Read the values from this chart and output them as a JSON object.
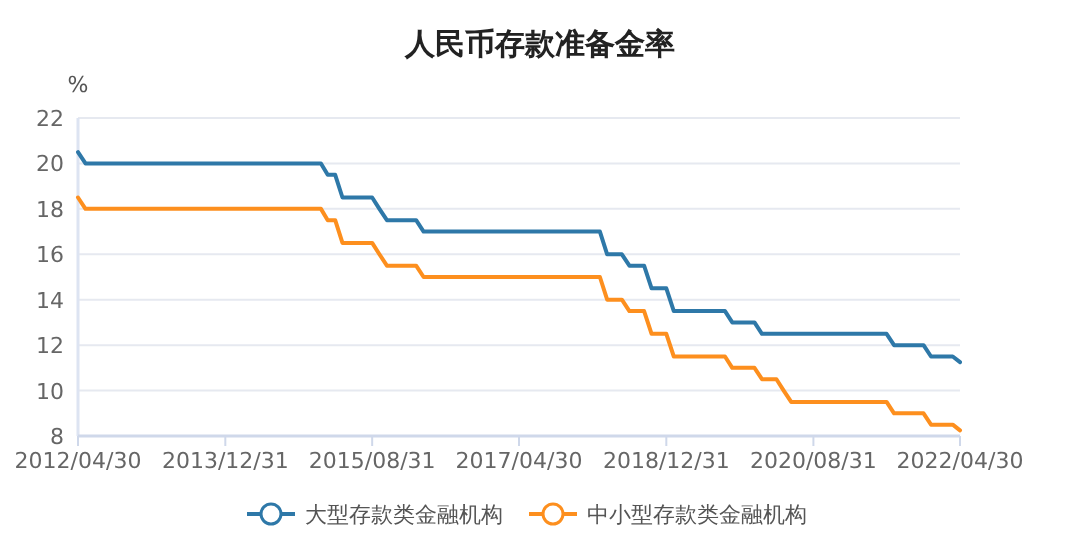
{
  "chart_data": {
    "type": "line",
    "title": "人民币存款准备金率",
    "ylabel": "%",
    "xlim": [
      "2012-04-30",
      "2022-04-30"
    ],
    "xticks": [
      {
        "value": "2012-04-30",
        "label": "2012/04/30"
      },
      {
        "value": "2013-12-31",
        "label": "2013/12/31"
      },
      {
        "value": "2015-08-31",
        "label": "2015/08/31"
      },
      {
        "value": "2017-04-30",
        "label": "2017/04/30"
      },
      {
        "value": "2018-12-31",
        "label": "2018/12/31"
      },
      {
        "value": "2020-08-31",
        "label": "2020/08/31"
      },
      {
        "value": "2022-04-30",
        "label": "2022/04/30"
      }
    ],
    "ylim": [
      8,
      22
    ],
    "yticks": [
      8,
      10,
      12,
      14,
      16,
      18,
      20,
      22
    ],
    "grid": "y",
    "legend": "bottom",
    "marker": "none",
    "line_style": "solid",
    "series": [
      {
        "name": "大型存款类金融机构",
        "color": "#2e78a8",
        "x": [
          "2012-04-30",
          "2012-05-31",
          "2015-01-31",
          "2015-02-28",
          "2015-03-31",
          "2015-04-30",
          "2015-08-31",
          "2015-09-30",
          "2015-10-31",
          "2016-02-29",
          "2016-03-31",
          "2018-03-31",
          "2018-04-30",
          "2018-06-30",
          "2018-07-31",
          "2018-09-30",
          "2018-10-31",
          "2018-12-31",
          "2019-01-31",
          "2019-08-31",
          "2019-09-30",
          "2019-12-31",
          "2020-01-31",
          "2021-06-30",
          "2021-07-31",
          "2021-11-30",
          "2021-12-31",
          "2022-03-31",
          "2022-04-30"
        ],
        "values": [
          20.5,
          20,
          20,
          19.5,
          19.5,
          18.5,
          18.5,
          18,
          17.5,
          17.5,
          17,
          17,
          16,
          16,
          15.5,
          15.5,
          14.5,
          14.5,
          13.5,
          13.5,
          13,
          13,
          12.5,
          12.5,
          12,
          12,
          11.5,
          11.5,
          11.25
        ]
      },
      {
        "name": "中小型存款类金融机构",
        "color": "#fd8f1e",
        "x": [
          "2012-04-30",
          "2012-05-31",
          "2015-01-31",
          "2015-02-28",
          "2015-03-31",
          "2015-04-30",
          "2015-08-31",
          "2015-09-30",
          "2015-10-31",
          "2016-02-29",
          "2016-03-31",
          "2018-03-31",
          "2018-04-30",
          "2018-06-30",
          "2018-07-31",
          "2018-09-30",
          "2018-10-31",
          "2018-12-31",
          "2019-01-31",
          "2019-08-31",
          "2019-09-30",
          "2019-12-31",
          "2020-01-31",
          "2020-03-31",
          "2020-04-30",
          "2020-05-31",
          "2021-06-30",
          "2021-07-31",
          "2021-11-30",
          "2021-12-31",
          "2022-03-31",
          "2022-04-30"
        ],
        "values": [
          18.5,
          18,
          18,
          17.5,
          17.5,
          16.5,
          16.5,
          16,
          15.5,
          15.5,
          15,
          15,
          14,
          14,
          13.5,
          13.5,
          12.5,
          12.5,
          11.5,
          11.5,
          11,
          11,
          10.5,
          10.5,
          10,
          9.5,
          9.5,
          9,
          9,
          8.5,
          8.5,
          8.25
        ]
      }
    ]
  }
}
